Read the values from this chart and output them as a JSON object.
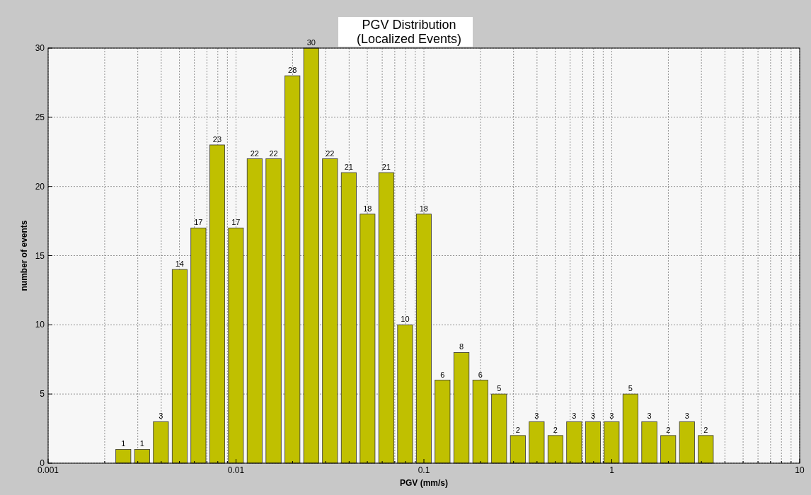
{
  "chart_data": {
    "type": "histogram",
    "title": "PGV Distribution\n(Localized Events)",
    "xlabel": "PGV (mm/s)",
    "ylabel": "number of events",
    "bins": [
      0.00224,
      0.00282,
      0.00355,
      0.00447,
      0.00562,
      0.00708,
      0.00891,
      0.0112,
      0.0141,
      0.0178,
      0.0224,
      0.0282,
      0.0355,
      0.0447,
      0.0562,
      0.0708,
      0.0891,
      0.112,
      0.141,
      0.178,
      0.224,
      0.282,
      0.355,
      0.447,
      0.562,
      0.708,
      0.891,
      1.12,
      1.41,
      1.78,
      2.24,
      2.82,
      3.55
    ],
    "values": [
      1,
      1,
      3,
      14,
      17,
      23,
      17,
      22,
      22,
      28,
      30,
      22,
      21,
      18,
      21,
      10,
      18,
      6,
      8,
      6,
      5,
      2,
      3,
      2,
      3,
      3,
      3,
      5,
      3,
      2,
      3,
      2
    ],
    "color": "#c0c000",
    "data_labels": true,
    "log": "x",
    "grid": true,
    "xlim": [
      0.001,
      10
    ],
    "xticks": [
      {
        "value": 0.001,
        "label": "0.001"
      },
      {
        "value": 0.002,
        "label": null
      },
      {
        "value": 0.003,
        "label": null
      },
      {
        "value": 0.004,
        "label": null
      },
      {
        "value": 0.005,
        "label": null
      },
      {
        "value": 0.006,
        "label": null
      },
      {
        "value": 0.007,
        "label": null
      },
      {
        "value": 0.008,
        "label": null
      },
      {
        "value": 0.009,
        "label": null
      },
      {
        "value": 0.01,
        "label": "0.01"
      },
      {
        "value": 0.02,
        "label": null
      },
      {
        "value": 0.03,
        "label": null
      },
      {
        "value": 0.04,
        "label": null
      },
      {
        "value": 0.05,
        "label": null
      },
      {
        "value": 0.06,
        "label": null
      },
      {
        "value": 0.07,
        "label": null
      },
      {
        "value": 0.08,
        "label": null
      },
      {
        "value": 0.09,
        "label": null
      },
      {
        "value": 0.1,
        "label": "0.1"
      },
      {
        "value": 0.2,
        "label": null
      },
      {
        "value": 0.3,
        "label": null
      },
      {
        "value": 0.4,
        "label": null
      },
      {
        "value": 0.5,
        "label": null
      },
      {
        "value": 0.6,
        "label": null
      },
      {
        "value": 0.7,
        "label": null
      },
      {
        "value": 0.8,
        "label": null
      },
      {
        "value": 0.9,
        "label": null
      },
      {
        "value": 1,
        "label": "1"
      },
      {
        "value": 2,
        "label": null
      },
      {
        "value": 3,
        "label": null
      },
      {
        "value": 4,
        "label": null
      },
      {
        "value": 5,
        "label": null
      },
      {
        "value": 6,
        "label": null
      },
      {
        "value": 7,
        "label": null
      },
      {
        "value": 8,
        "label": null
      },
      {
        "value": 9,
        "label": null
      },
      {
        "value": 10,
        "label": "10"
      }
    ],
    "ylim": [
      0,
      30
    ],
    "yticks": [
      0,
      5,
      10,
      15,
      20,
      25,
      30
    ]
  }
}
